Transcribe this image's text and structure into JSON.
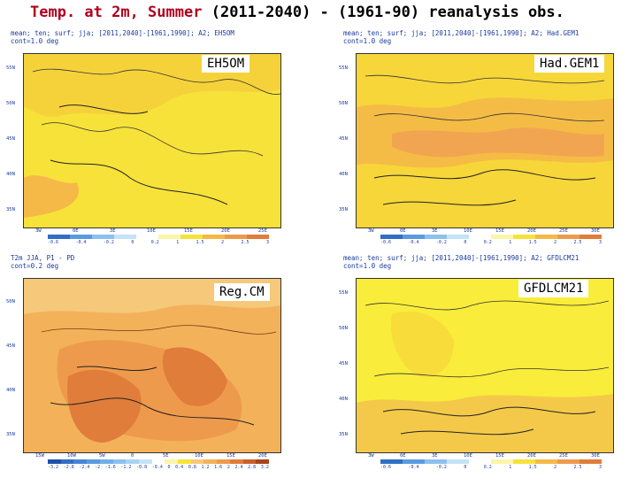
{
  "title": {
    "variable": "Temp. at 2m, Summer",
    "rest": "(2011-2040) - (1961-90) reanalysis obs."
  },
  "panels": [
    {
      "model": "EH5OM",
      "header_line1": "mean; ten; surf; jja; [2011,2040]-[1961,1990]; A2; EH5OM",
      "header_line2": "cont=1.0 deg",
      "x_ticks": [
        "3W",
        "0E",
        "3E",
        "10E",
        "15E",
        "20E",
        "25E"
      ],
      "y_ticks": [
        "55N",
        "50N",
        "45N",
        "40N",
        "35N"
      ],
      "colorbar": [
        "-0.6",
        "-0.4",
        "-0.2",
        "0",
        "0.2",
        "1",
        "1.5",
        "2",
        "2.5",
        "3"
      ],
      "colors": [
        "#f7e23a",
        "#f6d23a",
        "#f5b948"
      ]
    },
    {
      "model": "Had.GEM1",
      "header_line1": "mean; ten; surf; jja; [2011,2040]-[1961,1990]; A2; Had.GEM1",
      "header_line2": "cont=1.0 deg",
      "x_ticks": [
        "3W",
        "0E",
        "3E",
        "10E",
        "15E",
        "20E",
        "25E",
        "30E"
      ],
      "y_ticks": [
        "55N",
        "50N",
        "45N",
        "40N",
        "35N"
      ],
      "colorbar": [
        "-0.6",
        "-0.4",
        "-0.2",
        "0",
        "0.2",
        "1",
        "1.5",
        "2",
        "2.5",
        "3"
      ],
      "colors": [
        "#f7d63a",
        "#f5bc45",
        "#f2a550"
      ]
    },
    {
      "model": "Reg.CM",
      "header_line1": "T2m JJA, P1 - PD",
      "header_line2": "cont=0.2 deg",
      "x_ticks": [
        "15W",
        "10W",
        "5W",
        "0",
        "5E",
        "10E",
        "15E",
        "20E"
      ],
      "y_ticks": [
        "50N",
        "45N",
        "40N",
        "35N"
      ],
      "colorbar": [
        "-3.2",
        "-2.8",
        "-2.4",
        "-2",
        "-1.6",
        "-1.2",
        "-0.8",
        "-0.4",
        "0",
        "0.4",
        "0.8",
        "1.2",
        "1.6",
        "2",
        "2.4",
        "2.8",
        "3.2"
      ],
      "colors": [
        "#f3b25a",
        "#ee9a4c",
        "#e07d3a"
      ]
    },
    {
      "model": "GFDLCM21",
      "header_line1": "mean; ten; surf; jja; [2011,2040]-[1961,1990]; A2; GFDLCM21",
      "header_line2": "cont=1.0 deg",
      "x_ticks": [
        "3W",
        "0E",
        "3E",
        "10E",
        "15E",
        "20E",
        "25E",
        "30E"
      ],
      "y_ticks": [
        "55N",
        "50N",
        "45N",
        "40N",
        "35N"
      ],
      "colorbar": [
        "-0.6",
        "-0.4",
        "-0.2",
        "0",
        "0.2",
        "1",
        "1.5",
        "2",
        "2.5",
        "3"
      ],
      "colors": [
        "#f9ec3a",
        "#f7dc3a",
        "#f4c94a"
      ]
    }
  ]
}
